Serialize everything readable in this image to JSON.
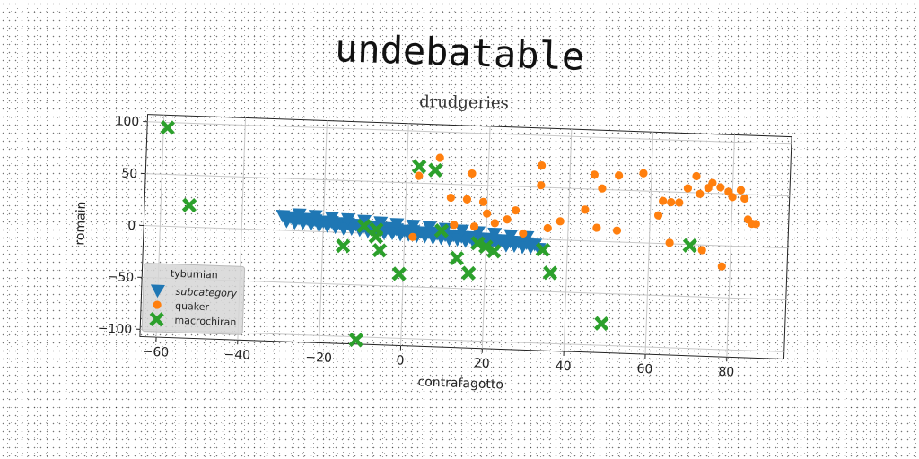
{
  "chart_data": {
    "type": "scatter",
    "title": "undebatable",
    "subtitle": "drudgeries",
    "xlabel": "contrafagotto",
    "ylabel": "romain",
    "xlim": [
      -64,
      94
    ],
    "ylim": [
      -107,
      107
    ],
    "xticks": [
      -60,
      -40,
      -20,
      0,
      20,
      40,
      60,
      80
    ],
    "yticks": [
      100,
      50,
      0,
      -50,
      -100
    ],
    "grid": true,
    "legend": {
      "title": "tyburnian",
      "position": "lower-left"
    },
    "colors": {
      "subcategory": "#1f77b4",
      "quaker": "#ff7f0e",
      "macrochiran": "#2ca02c"
    },
    "series": [
      {
        "name": "subcategory",
        "marker": "triangle-down",
        "points": [
          [
            -30,
            14
          ],
          [
            -28,
            13
          ],
          [
            -26,
            12
          ],
          [
            -24,
            12
          ],
          [
            -22,
            11
          ],
          [
            -20,
            10
          ],
          [
            -18,
            10
          ],
          [
            -16,
            9
          ],
          [
            -14,
            9
          ],
          [
            -12,
            8
          ],
          [
            -10,
            7
          ],
          [
            -8,
            7
          ],
          [
            -6,
            6
          ],
          [
            -4,
            6
          ],
          [
            -2,
            5
          ],
          [
            0,
            4
          ],
          [
            2,
            4
          ],
          [
            4,
            3
          ],
          [
            6,
            3
          ],
          [
            8,
            2
          ],
          [
            10,
            1
          ],
          [
            12,
            1
          ],
          [
            14,
            0
          ],
          [
            16,
            0
          ],
          [
            18,
            -1
          ],
          [
            20,
            -1
          ],
          [
            22,
            -2
          ],
          [
            24,
            -2
          ],
          [
            26,
            -3
          ],
          [
            28,
            -3
          ],
          [
            30,
            -4
          ],
          [
            32,
            -5
          ],
          [
            -29,
            9
          ],
          [
            -27,
            8
          ],
          [
            -25,
            8
          ],
          [
            -23,
            7
          ],
          [
            -21,
            6
          ],
          [
            -19,
            6
          ],
          [
            -17,
            5
          ],
          [
            -15,
            4
          ],
          [
            -13,
            4
          ],
          [
            -11,
            3
          ],
          [
            -9,
            2
          ],
          [
            -7,
            2
          ],
          [
            -5,
            1
          ],
          [
            -3,
            1
          ],
          [
            -1,
            0
          ],
          [
            1,
            0
          ],
          [
            3,
            -1
          ],
          [
            5,
            -1
          ],
          [
            7,
            -2
          ],
          [
            9,
            -2
          ],
          [
            11,
            -3
          ],
          [
            13,
            -3
          ],
          [
            15,
            -4
          ],
          [
            17,
            -5
          ],
          [
            19,
            -5
          ],
          [
            21,
            -6
          ],
          [
            23,
            -6
          ],
          [
            25,
            -7
          ],
          [
            27,
            -7
          ],
          [
            29,
            -8
          ],
          [
            31,
            -8
          ],
          [
            33,
            -9
          ],
          [
            -26,
            16
          ],
          [
            -22,
            15
          ],
          [
            -18,
            14
          ],
          [
            -14,
            13
          ],
          [
            -10,
            12
          ],
          [
            -6,
            11
          ],
          [
            -2,
            10
          ],
          [
            2,
            9
          ],
          [
            6,
            8
          ],
          [
            10,
            7
          ],
          [
            14,
            6
          ],
          [
            18,
            5
          ],
          [
            22,
            4
          ],
          [
            26,
            3
          ],
          [
            30,
            2
          ]
        ]
      },
      {
        "name": "quaker",
        "marker": "circle",
        "points": [
          [
            3,
            57
          ],
          [
            8,
            75
          ],
          [
            11,
            37
          ],
          [
            16,
            61
          ],
          [
            15,
            36
          ],
          [
            19,
            34
          ],
          [
            20,
            23
          ],
          [
            22,
            14
          ],
          [
            25,
            18
          ],
          [
            27,
            27
          ],
          [
            29,
            5
          ],
          [
            12,
            11
          ],
          [
            17,
            10
          ],
          [
            33,
            71
          ],
          [
            33,
            52
          ],
          [
            35,
            11
          ],
          [
            38,
            18
          ],
          [
            44,
            30
          ],
          [
            46,
            64
          ],
          [
            47,
            13
          ],
          [
            48,
            51
          ],
          [
            52,
            64
          ],
          [
            52,
            11
          ],
          [
            58,
            67
          ],
          [
            62,
            27
          ],
          [
            63,
            41
          ],
          [
            65,
            40
          ],
          [
            67,
            40
          ],
          [
            69,
            54
          ],
          [
            71,
            66
          ],
          [
            72,
            49
          ],
          [
            74,
            55
          ],
          [
            75,
            60
          ],
          [
            77,
            56
          ],
          [
            79,
            52
          ],
          [
            80,
            47
          ],
          [
            82,
            54
          ],
          [
            83,
            46
          ],
          [
            84,
            26
          ],
          [
            85,
            22
          ],
          [
            86,
            22
          ],
          [
            2,
            -2
          ],
          [
            65,
            1
          ],
          [
            73,
            -5
          ],
          [
            78,
            -20
          ]
        ]
      },
      {
        "name": "macrochiran",
        "marker": "x",
        "points": [
          [
            -59,
            95
          ],
          [
            -53,
            21
          ],
          [
            3,
            66
          ],
          [
            7,
            63
          ],
          [
            -15,
            -13
          ],
          [
            -10,
            7
          ],
          [
            -7,
            4
          ],
          [
            -6,
            -16
          ],
          [
            -7,
            -3
          ],
          [
            -1,
            -38
          ],
          [
            9,
            5
          ],
          [
            13,
            -21
          ],
          [
            16,
            -35
          ],
          [
            18,
            -6
          ],
          [
            20,
            -9
          ],
          [
            22,
            -13
          ],
          [
            34,
            -10
          ],
          [
            36,
            -32
          ],
          [
            49,
            -79
          ],
          [
            70,
            -1
          ],
          [
            -11,
            -103
          ]
        ]
      }
    ]
  }
}
